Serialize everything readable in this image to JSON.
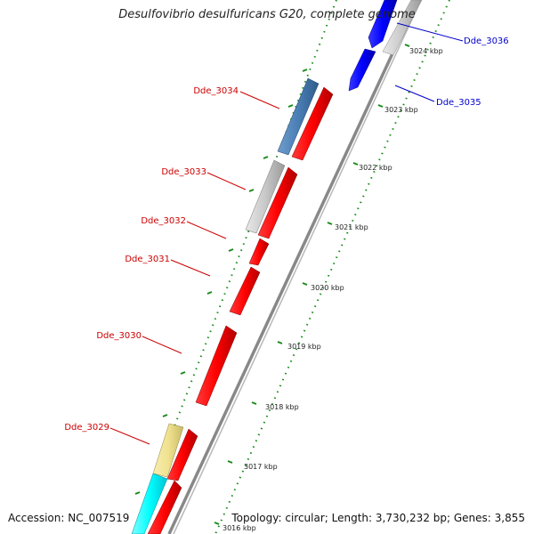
{
  "title": "Desulfovibrio desulfuricans G20, complete genome",
  "footer": {
    "accession": "Accession: NC_007519",
    "summary": "Topology: circular; Length: 3,730,232 bp; Genes: 3,855"
  },
  "ticks": [
    "3024 kbp",
    "3023 kbp",
    "3022 kbp",
    "3021 kbp",
    "3020 kbp",
    "3019 kbp",
    "3018 kbp",
    "3017 kbp",
    "3016 kbp"
  ],
  "genes": [
    {
      "label": "Dde_3036",
      "color": "#0000cc"
    },
    {
      "label": "Dde_3035",
      "color": "#0000cc"
    },
    {
      "label": "Dde_3034",
      "color": "#cc0000"
    },
    {
      "label": "Dde_3033",
      "color": "#cc0000"
    },
    {
      "label": "Dde_3032",
      "color": "#cc0000"
    },
    {
      "label": "Dde_3031",
      "color": "#cc0000"
    },
    {
      "label": "Dde_3030",
      "color": "#cc0000"
    },
    {
      "label": "Dde_3029",
      "color": "#cc0000"
    }
  ],
  "colors": {
    "forward_cds": "#ff0000",
    "reverse_cds": "#0000ff",
    "grey_feature": "#c8c8c8",
    "steelblue_feature": "#4a7eb5",
    "khaki_feature": "#f0e28f",
    "cyan_feature": "#00ffff",
    "backbone": "#888888",
    "tick": "#1a8a1a"
  }
}
